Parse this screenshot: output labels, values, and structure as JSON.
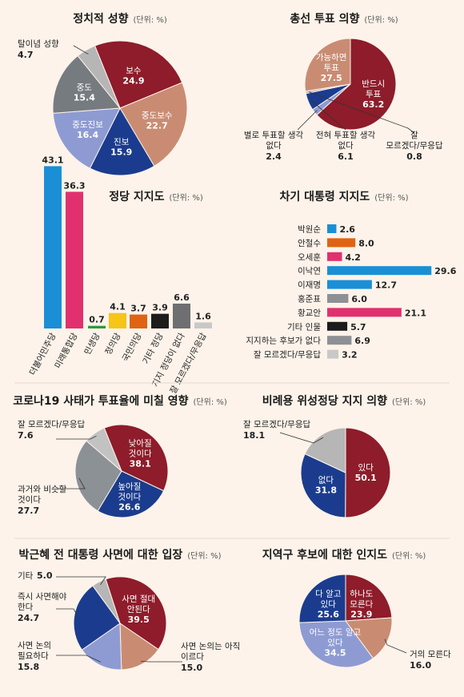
{
  "unit_label": "(단위: %)",
  "colors": {
    "red": "#8e1c2a",
    "salmon": "#c98c73",
    "navy": "#1b3c8e",
    "periwinkle": "#8e9bd3",
    "slate": "#767b80",
    "lightgray": "#b6b6b6",
    "blue": "#1a8fd6",
    "pink": "#e0316e",
    "green": "#2b9a3f",
    "yellow": "#f5c518",
    "orange": "#e06313",
    "black": "#1c1c1c",
    "gray": "#8d9094",
    "mid": "#6f6f72",
    "silver": "#c8c8c8"
  },
  "chart_data": [
    {
      "type": "pie",
      "title": "정치적 성향",
      "slices": [
        {
          "label": "보수",
          "value": 24.9,
          "color": "#8e1c2a"
        },
        {
          "label": "중도보수",
          "value": 22.7,
          "color": "#c98c73"
        },
        {
          "label": "진보",
          "value": 15.9,
          "color": "#1b3c8e"
        },
        {
          "label": "중도진보",
          "value": 16.4,
          "color": "#8e9bd3"
        },
        {
          "label": "중도",
          "value": 15.4,
          "color": "#767b80"
        },
        {
          "label": "탈이념 성향",
          "value": 4.7,
          "color": "#b6b6b6"
        }
      ]
    },
    {
      "type": "pie",
      "title": "총선 투표 의향",
      "slices": [
        {
          "label": "반드시 투표",
          "value": 63.2,
          "color": "#8e1c2a"
        },
        {
          "label": "별로 투표할 생각 없다",
          "value": 2.4,
          "color": "#8e9bd3"
        },
        {
          "label": "전혀 투표할 생각 없다",
          "value": 6.1,
          "color": "#1b3c8e"
        },
        {
          "label": "잘 모르겠다/무응답",
          "value": 0.8,
          "color": "#b6b6b6"
        },
        {
          "label": "가능하면 투표",
          "value": 27.5,
          "color": "#c98c73"
        }
      ]
    },
    {
      "type": "bar",
      "title": "정당 지지도",
      "categories": [
        "더불어민주당",
        "미래통합당",
        "민생당",
        "정의당",
        "국민의당",
        "기타 정당",
        "지지 정당이 없다",
        "잘 모르겠다/무응답"
      ],
      "values": [
        43.1,
        36.3,
        0.7,
        4.1,
        3.7,
        3.9,
        6.6,
        1.6
      ],
      "colors": [
        "#1a8fd6",
        "#e0316e",
        "#2b9a3f",
        "#f5c518",
        "#e06313",
        "#1c1c1c",
        "#6f6f72",
        "#c8c8c8"
      ]
    },
    {
      "type": "bar",
      "orientation": "horizontal",
      "title": "차기 대통령 지지도",
      "categories": [
        "박원순",
        "안철수",
        "오세훈",
        "이낙연",
        "이재명",
        "홍준표",
        "황교안",
        "기타 인물",
        "지지하는 후보가 없다",
        "잘 모르겠다/무응답"
      ],
      "values": [
        2.6,
        8.0,
        4.2,
        29.6,
        12.7,
        6.0,
        21.1,
        5.7,
        6.9,
        3.2
      ],
      "value_labels": [
        "2.6",
        "8.0",
        "4.2",
        "29.6",
        "12.7",
        "6.0",
        "21.1",
        "5.7",
        "6.9",
        "3.2"
      ],
      "colors": [
        "#1a8fd6",
        "#e06313",
        "#e0316e",
        "#1a8fd6",
        "#1a8fd6",
        "#8d9094",
        "#e0316e",
        "#1c1c1c",
        "#8d9094",
        "#c8c8c8"
      ]
    },
    {
      "type": "pie",
      "title": "코로나19 사태가 투표율에 미칠 영향",
      "slices": [
        {
          "label": "낮아질 것이다",
          "value": 38.1,
          "color": "#8e1c2a"
        },
        {
          "label": "높아질 것이다",
          "value": 26.6,
          "color": "#1b3c8e"
        },
        {
          "label": "과거와 비슷할 것이다",
          "value": 27.7,
          "color": "#8c9196"
        },
        {
          "label": "잘 모르겠다/무응답",
          "value": 7.6,
          "color": "#c2c2c2"
        }
      ]
    },
    {
      "type": "pie",
      "title": "비례용 위성정당 지지 의향",
      "slices": [
        {
          "label": "있다",
          "value": 50.1,
          "color": "#8e1c2a"
        },
        {
          "label": "없다",
          "value": 31.8,
          "color": "#1b3c8e"
        },
        {
          "label": "잘 모르겠다/무응답",
          "value": 18.1,
          "color": "#b6b6b6"
        }
      ]
    },
    {
      "type": "pie",
      "title": "박근혜 전 대통령 사면에 대한 입장",
      "slices": [
        {
          "label": "사면 절대 안된다",
          "value": 39.5,
          "color": "#8e1c2a"
        },
        {
          "label": "사면 논의는 아직 이르다",
          "value": 15.0,
          "color": "#c98c73"
        },
        {
          "label": "사면 논의 필요하다",
          "value": 15.8,
          "color": "#8e9bd3"
        },
        {
          "label": "즉시 사면해야 한다",
          "value": 24.7,
          "color": "#1b3c8e"
        },
        {
          "label": "기타",
          "value": 5.0,
          "color": "#b6b6b6"
        }
      ]
    },
    {
      "type": "pie",
      "title": "지역구 후보에 대한 인지도",
      "slices": [
        {
          "label": "하나도 모른다",
          "value": 23.9,
          "color": "#8e1c2a"
        },
        {
          "label": "거의 모른다",
          "value": 16.0,
          "color": "#c98c73"
        },
        {
          "label": "어느 정도 알고 있다",
          "value": 34.5,
          "color": "#8e9bd3"
        },
        {
          "label": "다 알고 있다",
          "value": 25.6,
          "color": "#1b3c8e"
        }
      ]
    }
  ]
}
